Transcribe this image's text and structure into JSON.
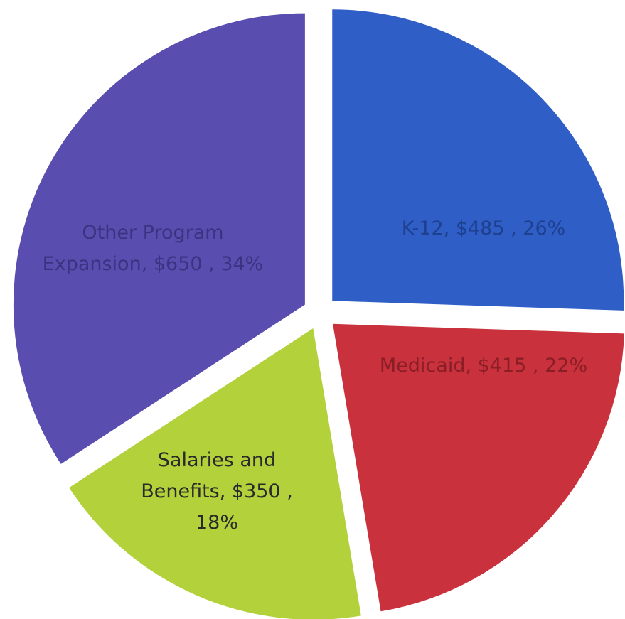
{
  "chart_data": {
    "type": "pie",
    "values": [
      485,
      415,
      350,
      650
    ],
    "value_labels": [
      [
        "K-12, $485 , 26%"
      ],
      [
        "Medicaid, $415 , 22%"
      ],
      [
        "Salaries and",
        "Benefits, $350 ,",
        "18%"
      ],
      [
        "Other Program",
        "Expansion, $650 , 34%"
      ]
    ],
    "colors": [
      "#2f5ec6",
      "#c9313d",
      "#b3d13b",
      "#5a4db0"
    ],
    "label_colors": [
      "#1f3f8f",
      "#8a1e26",
      "#2a2a2a",
      "#3b3380"
    ]
  }
}
